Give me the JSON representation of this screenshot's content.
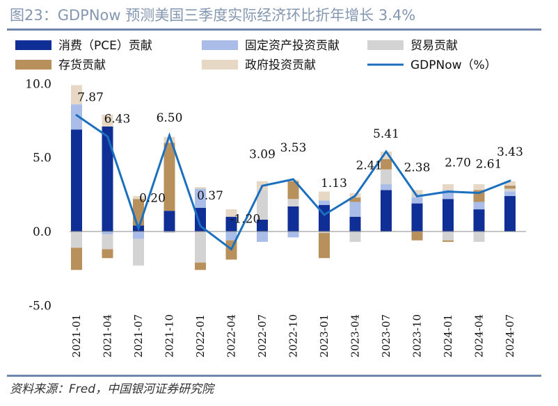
{
  "title": "图23：GDPNow 预测美国三季度实际经济环比折年增长 3.4%",
  "source": "资料来源：Fred，中国银河证券研究院",
  "chart_data": {
    "type": "bar",
    "stacked": true,
    "categories": [
      "2021-01",
      "2021-04",
      "2021-07",
      "2021-10",
      "2022-01",
      "2022-04",
      "2022-07",
      "2022-10",
      "2023-01",
      "2023-04",
      "2023-07",
      "2023-10",
      "2024-01",
      "2024-04",
      "2024-07"
    ],
    "yticks": [
      "10.0",
      "5.0",
      "0.0",
      "-5.0"
    ],
    "ylim": [
      -5,
      10
    ],
    "series": [
      {
        "name": "消费（PCE）贡献",
        "color": "#0f2f96",
        "values": [
          6.9,
          7.1,
          0.4,
          1.4,
          1.6,
          1.0,
          0.8,
          1.7,
          1.8,
          1.0,
          2.8,
          1.9,
          2.2,
          1.5,
          2.4
        ]
      },
      {
        "name": "固定资产投资贡献",
        "color": "#a9bde8",
        "values": [
          1.7,
          -0.2,
          -0.5,
          0.0,
          1.3,
          -0.6,
          -0.7,
          -0.4,
          0.3,
          1.0,
          0.4,
          0.4,
          0.6,
          0.5,
          0.3
        ]
      },
      {
        "name": "贸易贡献",
        "color": "#d3d3d3",
        "values": [
          -1.1,
          -1.0,
          -1.8,
          -0.1,
          -2.1,
          0.0,
          2.0,
          0.5,
          -0.1,
          -0.7,
          1.0,
          0.3,
          -0.6,
          -0.7,
          0.2
        ]
      },
      {
        "name": "存货贡献",
        "color": "#b8905c",
        "values": [
          -1.5,
          -0.6,
          1.8,
          4.6,
          -0.5,
          -1.3,
          0.0,
          1.2,
          -1.7,
          0.3,
          0.7,
          -0.6,
          -0.1,
          0.8,
          0.2
        ]
      },
      {
        "name": "政府投资贡献",
        "color": "#e6d8c4",
        "values": [
          1.3,
          0.8,
          0.2,
          0.4,
          0.1,
          0.5,
          0.6,
          0.1,
          0.6,
          0.3,
          0.5,
          0.2,
          0.4,
          0.4,
          0.3
        ]
      }
    ],
    "line": {
      "name": "GDPNow（%）",
      "color": "#1a6fbf",
      "values": [
        7.87,
        6.43,
        0.2,
        6.5,
        0.37,
        -1.2,
        3.09,
        3.53,
        1.13,
        2.41,
        5.41,
        2.38,
        2.7,
        2.61,
        3.43
      ],
      "labels": [
        "7.87",
        "6.43",
        "0.20",
        "6.50",
        "0.37",
        "-1.20",
        "3.09",
        "3.53",
        "1.13",
        "2.41",
        "5.41",
        "2.38",
        "2.70",
        "2.61",
        "3.43"
      ]
    }
  }
}
